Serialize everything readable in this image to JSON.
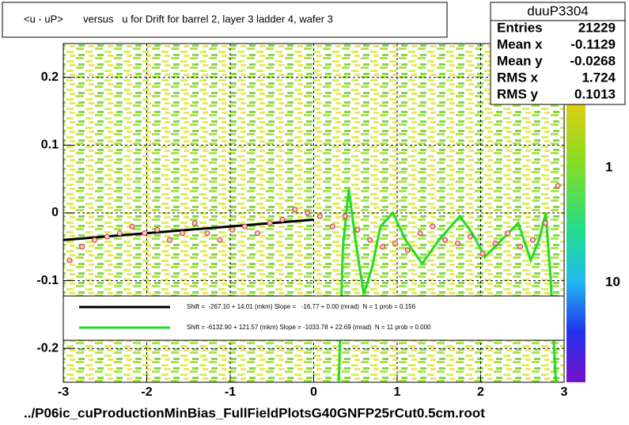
{
  "chart_data": {
    "type": "profile",
    "title": "<u - uP>       versus   u for Drift for barrel 2, layer 3 ladder 4, wafer 3",
    "footer": "../P06ic_cuProductionMinBias_FullFieldPlotsG40GNFP25rCut0.5cm.root",
    "xlim": [
      -3,
      3
    ],
    "ylim": [
      -0.25,
      0.25
    ],
    "xticks": [
      -3,
      -2,
      -1,
      0,
      1,
      2,
      3
    ],
    "yticks": [
      -0.2,
      -0.1,
      0,
      0.1,
      0.2
    ],
    "grid": true,
    "stats": {
      "name": "duuP3304",
      "rows": [
        [
          "Entries",
          "21229"
        ],
        [
          "Mean x",
          "-0.1129"
        ],
        [
          "Mean y",
          "-0.0268"
        ],
        [
          "RMS x",
          "1.724"
        ],
        [
          "RMS y",
          "0.1013"
        ]
      ]
    },
    "palette_labels": [
      "1",
      "10"
    ],
    "points": {
      "color": "#cc3333",
      "x": [
        -2.925,
        -2.775,
        -2.625,
        -2.475,
        -2.325,
        -2.175,
        -2.025,
        -1.875,
        -1.725,
        -1.575,
        -1.425,
        -1.275,
        -1.125,
        -0.975,
        -0.825,
        -0.675,
        -0.525,
        -0.375,
        -0.225,
        -0.075,
        0.075,
        0.225,
        0.375,
        0.525,
        0.675,
        0.825,
        0.975,
        1.125,
        1.275,
        1.425,
        1.575,
        1.725,
        1.875,
        2.025,
        2.175,
        2.325,
        2.475,
        2.625,
        2.775,
        2.925
      ],
      "values": [
        -0.07,
        -0.05,
        -0.04,
        -0.035,
        -0.03,
        -0.02,
        -0.03,
        -0.025,
        -0.04,
        -0.03,
        -0.015,
        -0.03,
        -0.04,
        -0.025,
        -0.02,
        -0.03,
        -0.015,
        -0.01,
        0.005,
        0.0,
        -0.005,
        -0.02,
        -0.005,
        -0.025,
        -0.04,
        -0.05,
        -0.045,
        -0.055,
        -0.03,
        -0.02,
        -0.04,
        -0.045,
        -0.035,
        -0.06,
        -0.045,
        -0.03,
        -0.05,
        -0.04,
        -0.015,
        0.04
      ]
    },
    "series": [
      {
        "name": "Shift =  -267.10 + 14.01 (mkm) Slope =   -16.77 + 0.00 (mrad)  N = 1 prob = 0.156",
        "color": "#000000",
        "x": [
          -3,
          0
        ],
        "values": [
          -0.04,
          -0.01
        ]
      },
      {
        "name": "Shift = -6132.90 + 121.57 (mkm) Slope = -1033.78 + 22.69 (mrad)  N = 11 prob = 0.000",
        "color": "#22dd22",
        "x": [
          0.3,
          0.35,
          0.42,
          0.5,
          0.6,
          0.7,
          0.8,
          0.95,
          1.1,
          1.3,
          1.5,
          1.75,
          1.9,
          2.05,
          2.25,
          2.45,
          2.6,
          2.7,
          2.78,
          2.84,
          2.9
        ],
        "values": [
          -0.25,
          -0.05,
          0.035,
          -0.04,
          -0.12,
          -0.08,
          -0.02,
          0.0,
          -0.04,
          -0.075,
          -0.04,
          -0.005,
          -0.03,
          -0.065,
          -0.04,
          -0.015,
          -0.07,
          -0.04,
          0.0,
          -0.1,
          -0.25
        ]
      }
    ]
  }
}
